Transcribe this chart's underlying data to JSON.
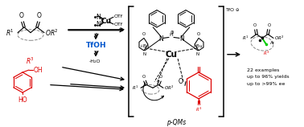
{
  "background_color": "#ffffff",
  "text_color": "#000000",
  "red_color": "#dd0000",
  "blue_color": "#0055cc",
  "green_color": "#00aa00",
  "annotation_lines": [
    "22 examples",
    "up to 96% yields",
    "up to >99% ee"
  ],
  "pqm_label": "p-QMs",
  "tfoh_label": "TfOH",
  "minus_h2o": "-H₂O",
  "tfo_label": "TfO"
}
